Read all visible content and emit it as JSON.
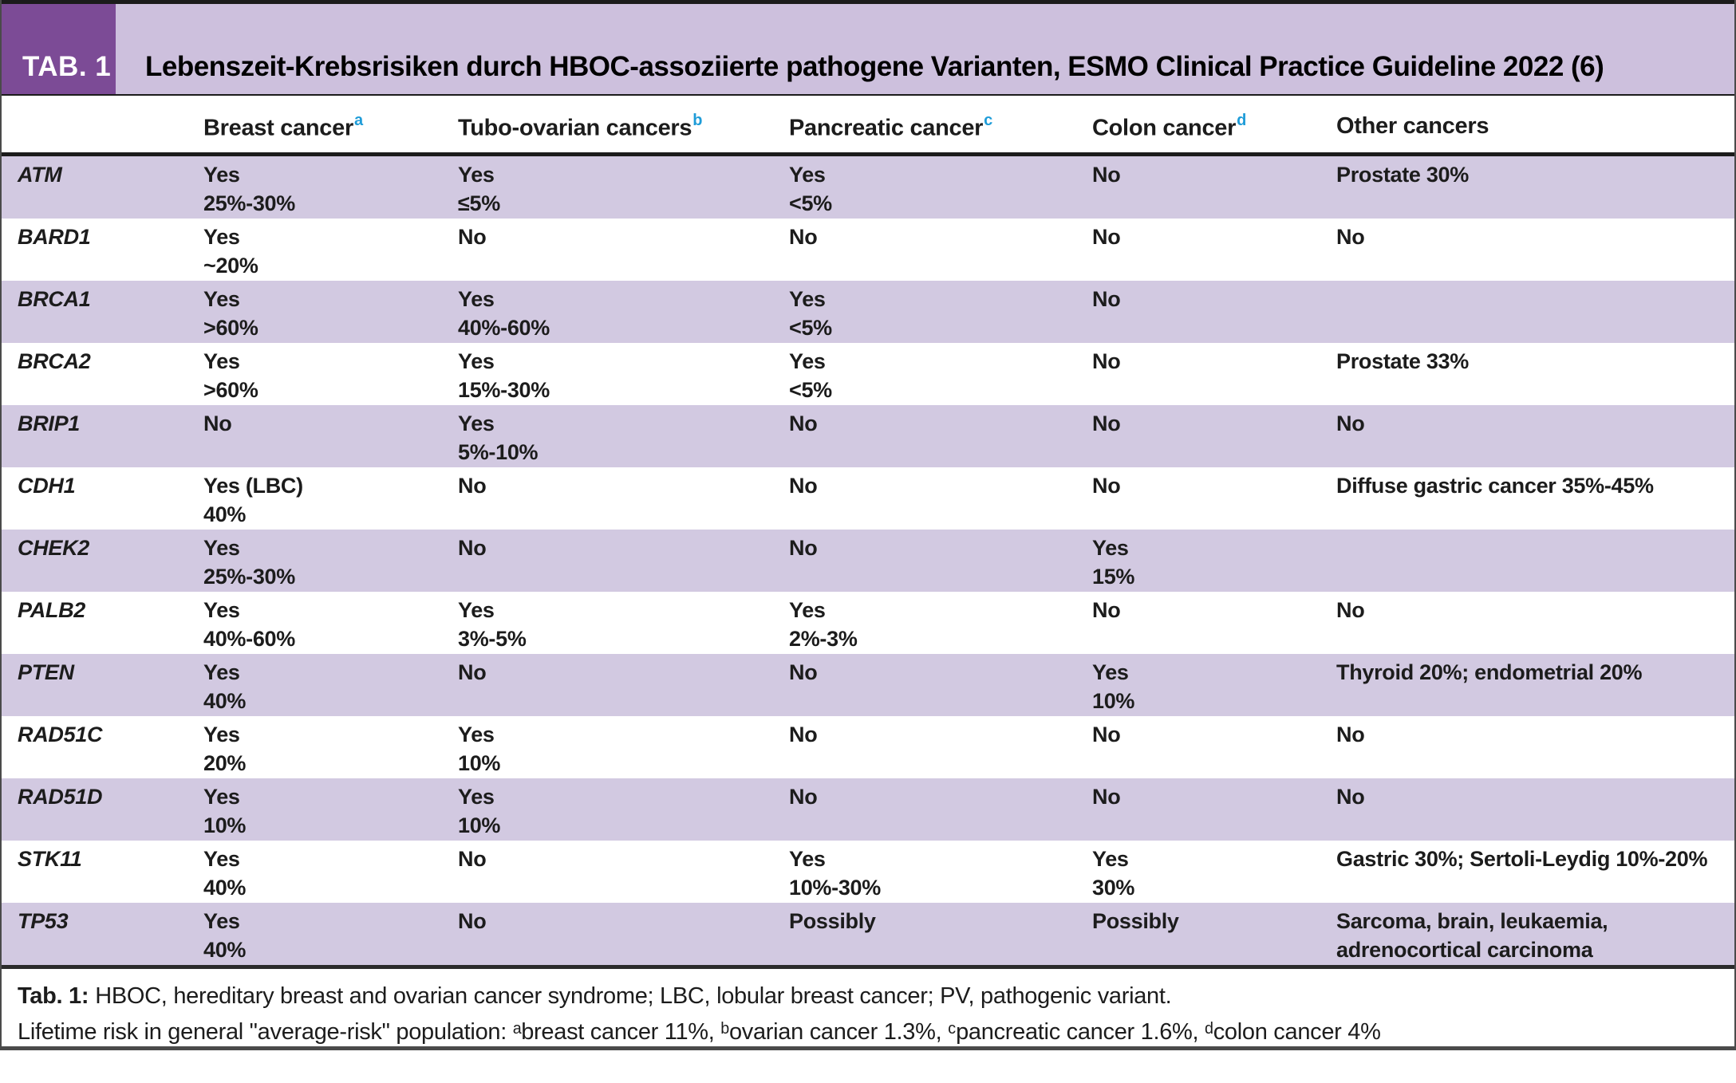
{
  "header": {
    "tab_label": "TAB. 1",
    "title": "Lebenszeit-Krebsrisiken durch HBOC-assoziierte pathogene Varianten, ESMO Clinical Practice Guideline 2022 (6)"
  },
  "table": {
    "columns": [
      {
        "label": "",
        "sup": ""
      },
      {
        "label": "Breast cancer",
        "sup": "a"
      },
      {
        "label": "Tubo-ovarian cancers",
        "sup": "b"
      },
      {
        "label": "Pancreatic cancer",
        "sup": "c"
      },
      {
        "label": "Colon cancer",
        "sup": "d"
      },
      {
        "label": "Other cancers",
        "sup": ""
      }
    ],
    "rows": [
      {
        "gene": "ATM",
        "breast": [
          "Yes",
          "25%-30%"
        ],
        "tubo": [
          "Yes",
          "≤5%"
        ],
        "pancreatic": [
          "Yes",
          "<5%"
        ],
        "colon": [
          "No"
        ],
        "other": [
          "Prostate 30%"
        ]
      },
      {
        "gene": "BARD1",
        "breast": [
          "Yes",
          "~20%"
        ],
        "tubo": [
          "No"
        ],
        "pancreatic": [
          "No"
        ],
        "colon": [
          "No"
        ],
        "other": [
          "No"
        ]
      },
      {
        "gene": "BRCA1",
        "breast": [
          "Yes",
          ">60%"
        ],
        "tubo": [
          "Yes",
          "40%-60%"
        ],
        "pancreatic": [
          "Yes",
          "<5%"
        ],
        "colon": [
          "No"
        ],
        "other": []
      },
      {
        "gene": "BRCA2",
        "breast": [
          "Yes",
          ">60%"
        ],
        "tubo": [
          "Yes",
          "15%-30%"
        ],
        "pancreatic": [
          "Yes",
          "<5%"
        ],
        "colon": [
          "No"
        ],
        "other": [
          "Prostate 33%"
        ]
      },
      {
        "gene": "BRIP1",
        "breast": [
          "No"
        ],
        "tubo": [
          "Yes",
          "5%-10%"
        ],
        "pancreatic": [
          "No"
        ],
        "colon": [
          "No"
        ],
        "other": [
          "No"
        ]
      },
      {
        "gene": "CDH1",
        "breast": [
          "Yes (LBC)",
          "40%"
        ],
        "tubo": [
          "No"
        ],
        "pancreatic": [
          "No"
        ],
        "colon": [
          "No"
        ],
        "other": [
          "Diffuse gastric cancer 35%-45%"
        ]
      },
      {
        "gene": "CHEK2",
        "breast": [
          "Yes",
          "25%-30%"
        ],
        "tubo": [
          "No"
        ],
        "pancreatic": [
          "No"
        ],
        "colon": [
          "Yes",
          "15%"
        ],
        "other": []
      },
      {
        "gene": "PALB2",
        "breast": [
          "Yes",
          "40%-60%"
        ],
        "tubo": [
          "Yes",
          "3%-5%"
        ],
        "pancreatic": [
          "Yes",
          "2%-3%"
        ],
        "colon": [
          "No"
        ],
        "other": [
          "No"
        ]
      },
      {
        "gene": "PTEN",
        "breast": [
          "Yes",
          "40%"
        ],
        "tubo": [
          "No"
        ],
        "pancreatic": [
          "No"
        ],
        "colon": [
          "Yes",
          "10%"
        ],
        "other": [
          "Thyroid 20%; endometrial 20%"
        ]
      },
      {
        "gene": "RAD51C",
        "breast": [
          "Yes",
          "20%"
        ],
        "tubo": [
          "Yes",
          "10%"
        ],
        "pancreatic": [
          "No"
        ],
        "colon": [
          "No"
        ],
        "other": [
          "No"
        ]
      },
      {
        "gene": "RAD51D",
        "breast": [
          "Yes",
          "10%"
        ],
        "tubo": [
          "Yes",
          "10%"
        ],
        "pancreatic": [
          "No"
        ],
        "colon": [
          "No"
        ],
        "other": [
          "No"
        ]
      },
      {
        "gene": "STK11",
        "breast": [
          "Yes",
          "40%"
        ],
        "tubo": [
          "No"
        ],
        "pancreatic": [
          "Yes",
          "10%-30%"
        ],
        "colon": [
          "Yes",
          "30%"
        ],
        "other": [
          "Gastric 30%; Sertoli-Leydig 10%-20%"
        ]
      },
      {
        "gene": "TP53",
        "breast": [
          "Yes",
          "40%"
        ],
        "tubo": [
          "No"
        ],
        "pancreatic": [
          "Possibly"
        ],
        "colon": [
          "Possibly"
        ],
        "other": [
          "Sarcoma, brain, leukaemia,",
          "adrenocortical carcinoma"
        ]
      }
    ]
  },
  "footnotes": {
    "label": "Tab. 1:",
    "line1": "HBOC, hereditary breast and ovarian cancer syndrome; LBC, lobular breast cancer; PV, pathogenic variant.",
    "line2": "Lifetime risk in general \"average-risk\" population: ᵃbreast cancer 11%, ᵇovarian cancer 1.3%, ᶜpancreatic cancer 1.6%, ᵈcolon cancer 4%"
  },
  "colors": {
    "tab_box": "#7c4b96",
    "title_band": "#cdc0dd",
    "row_stripe": "#d2c9e1",
    "superscript_blue": "#1e9cd8",
    "border_black": "#1b1b1b",
    "border_gray": "#4a4a4a",
    "text": "#1c1c1c"
  }
}
